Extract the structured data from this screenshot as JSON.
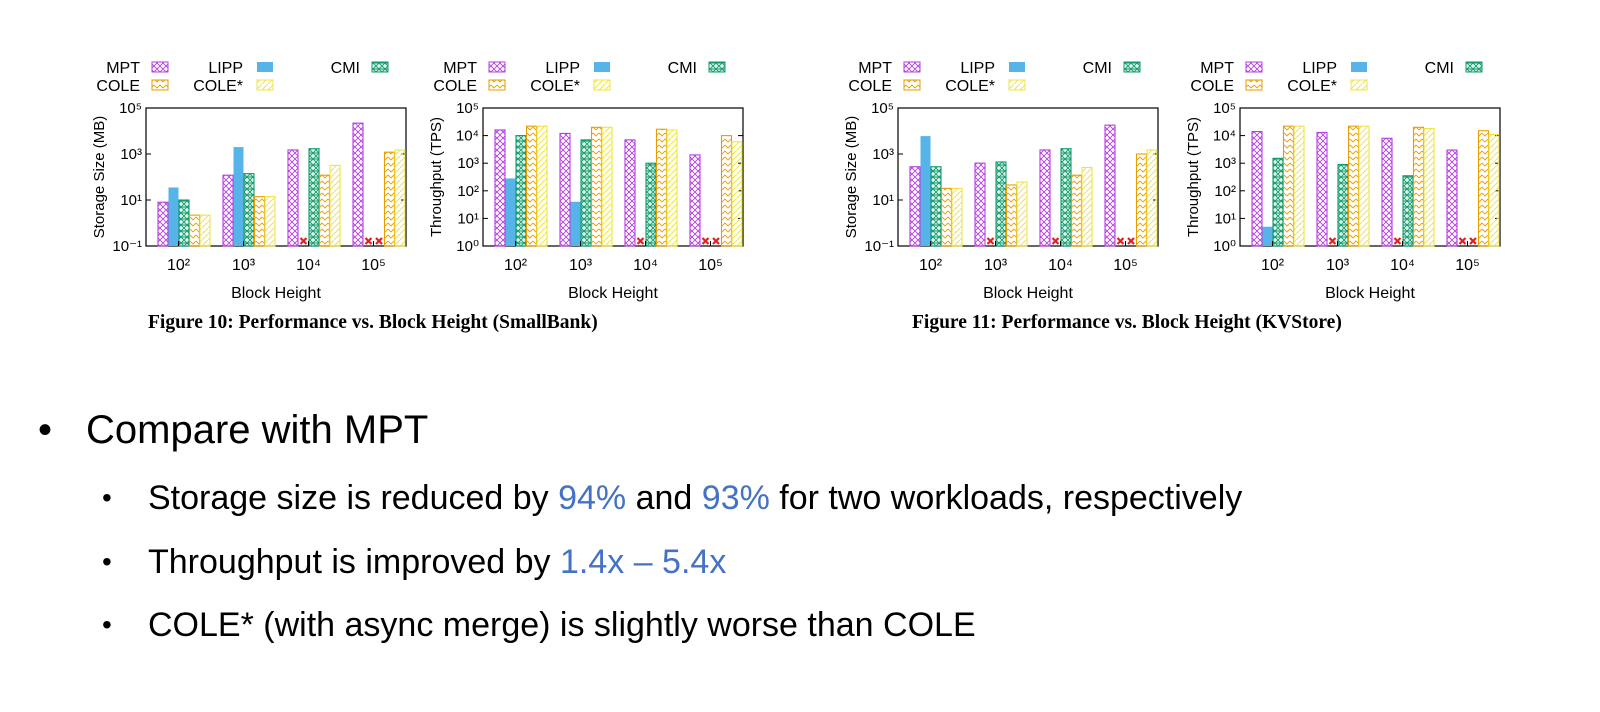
{
  "colors": {
    "MPT": "#b43ee0",
    "LIPP": "#56b4e9",
    "CMI": "#119a6e",
    "COLE": "#e69f00",
    "COLE*": "#f0e442",
    "fail_marker": "#e02020",
    "highlight": "#4472c4"
  },
  "legend_labels": [
    "MPT",
    "LIPP",
    "CMI",
    "COLE",
    "COLE*"
  ],
  "chart_data": [
    {
      "type": "bar",
      "figure": "Figure 10",
      "scale": "log",
      "xlabel": "Block Height",
      "ylabel": "Storage Size (MB)",
      "ylim": [
        0.1,
        100000
      ],
      "yticks": [
        "10⁻¹",
        "10¹",
        "10³",
        "10⁵"
      ],
      "categories": [
        "10²",
        "10³",
        "10⁴",
        "10⁵"
      ],
      "series": [
        {
          "name": "MPT",
          "values": [
            8,
            120,
            1500,
            22000
          ]
        },
        {
          "name": "LIPP",
          "values": [
            35,
            2000,
            null,
            null
          ]
        },
        {
          "name": "CMI",
          "values": [
            10,
            140,
            1700,
            null
          ]
        },
        {
          "name": "COLE",
          "values": [
            2.2,
            14,
            120,
            1200
          ]
        },
        {
          "name": "COLE*",
          "values": [
            2.2,
            14,
            320,
            1500
          ]
        }
      ],
      "legend": "top"
    },
    {
      "type": "bar",
      "figure": "Figure 10",
      "scale": "log",
      "xlabel": "Block Height",
      "ylabel": "Throughput (TPS)",
      "ylim": [
        1,
        100000
      ],
      "yticks": [
        "10⁰",
        "10¹",
        "10²",
        "10³",
        "10⁴",
        "10⁵"
      ],
      "categories": [
        "10²",
        "10³",
        "10⁴",
        "10⁵"
      ],
      "series": [
        {
          "name": "MPT",
          "values": [
            16000,
            12000,
            7000,
            2000
          ]
        },
        {
          "name": "LIPP",
          "values": [
            280,
            40,
            null,
            null
          ]
        },
        {
          "name": "CMI",
          "values": [
            10000,
            7000,
            1000,
            null
          ]
        },
        {
          "name": "COLE",
          "values": [
            22000,
            20000,
            17000,
            10000
          ]
        },
        {
          "name": "COLE*",
          "values": [
            22000,
            20000,
            16000,
            6000
          ]
        }
      ],
      "legend": "top"
    },
    {
      "type": "bar",
      "figure": "Figure 11",
      "scale": "log",
      "xlabel": "Block Height",
      "ylabel": "Storage Size (MB)",
      "ylim": [
        0.1,
        100000
      ],
      "yticks": [
        "10⁻¹",
        "10¹",
        "10³",
        "10⁵"
      ],
      "categories": [
        "10²",
        "10³",
        "10⁴",
        "10⁵"
      ],
      "series": [
        {
          "name": "MPT",
          "values": [
            280,
            400,
            1500,
            18000
          ]
        },
        {
          "name": "LIPP",
          "values": [
            6000,
            null,
            null,
            null
          ]
        },
        {
          "name": "CMI",
          "values": [
            280,
            450,
            1700,
            null
          ]
        },
        {
          "name": "COLE",
          "values": [
            32,
            45,
            120,
            1000
          ]
        },
        {
          "name": "COLE*",
          "values": [
            32,
            60,
            260,
            1500
          ]
        }
      ],
      "legend": "top"
    },
    {
      "type": "bar",
      "figure": "Figure 11",
      "scale": "log",
      "xlabel": "Block Height",
      "ylabel": "Throughput (TPS)",
      "ylim": [
        1,
        100000
      ],
      "yticks": [
        "10⁰",
        "10¹",
        "10²",
        "10³",
        "10⁴",
        "10⁵"
      ],
      "categories": [
        "10²",
        "10³",
        "10⁴",
        "10⁵"
      ],
      "series": [
        {
          "name": "MPT",
          "values": [
            14000,
            13000,
            8000,
            3000
          ]
        },
        {
          "name": "LIPP",
          "values": [
            5,
            null,
            null,
            null
          ]
        },
        {
          "name": "CMI",
          "values": [
            1500,
            900,
            350,
            null
          ]
        },
        {
          "name": "COLE",
          "values": [
            22000,
            22000,
            20000,
            15000
          ]
        },
        {
          "name": "COLE*",
          "values": [
            22000,
            22000,
            18000,
            11000
          ]
        }
      ],
      "legend": "top"
    }
  ],
  "captions": {
    "fig10": "Figure 10: Performance vs. Block Height (SmallBank)",
    "fig11": "Figure 11: Performance vs. Block Height (KVStore)"
  },
  "bullets": {
    "main": "Compare with MPT",
    "sub1": {
      "a": "Storage size is reduced by ",
      "h1": "94%",
      "b": " and ",
      "h2": "93%",
      "c": " for two workloads, respectively"
    },
    "sub2": {
      "a": "Throughput is improved by ",
      "h1": "1.4x – 5.4x"
    },
    "sub3": {
      "a": "COLE* (with async merge) is slightly worse than COLE"
    }
  }
}
